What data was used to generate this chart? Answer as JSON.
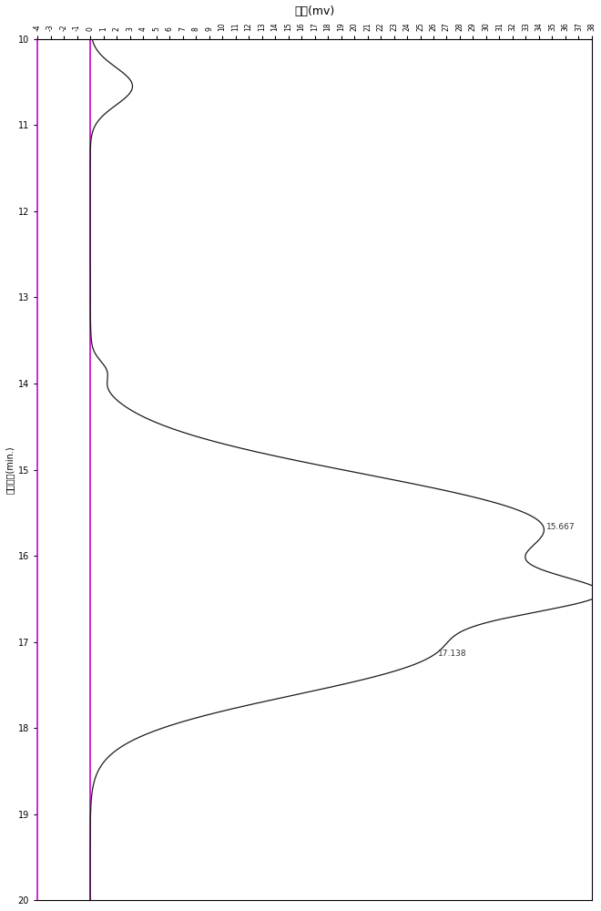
{
  "title": "电压(mv)",
  "ylabel": "保留时间(min.)",
  "ylim": [
    10,
    20
  ],
  "xlim": [
    -4,
    38
  ],
  "peak1_time": 15.667,
  "peak2_time": 17.138,
  "peak1_label": "15.667",
  "peak2_label": "17.138",
  "yticks": [
    10,
    11,
    12,
    13,
    14,
    15,
    16,
    17,
    18,
    19,
    20
  ],
  "xtick_start": -4,
  "xtick_end": 38,
  "background_color": "#ffffff",
  "line_color": "#1a1a1a",
  "border_color": "#000000",
  "purple_color": "#cc00cc",
  "annotation_color": "#333333",
  "figure_width": 6.6,
  "figure_height": 10.0,
  "dpi": 100
}
